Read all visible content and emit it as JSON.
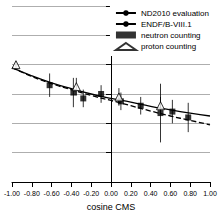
{
  "chart_data": {
    "type": "scatter",
    "x_label": "cosine CMS",
    "xlim": [
      -1,
      1
    ],
    "xticks": [
      {
        "value": -1,
        "label": "-1.00"
      },
      {
        "value": -0.8,
        "label": "-0.80"
      },
      {
        "value": -0.6,
        "label": "-0.60"
      },
      {
        "value": -0.4,
        "label": "-0.40"
      },
      {
        "value": -0.2,
        "label": "-0.20"
      },
      {
        "value": 0,
        "label": "0.00"
      },
      {
        "value": 0.2,
        "label": "0.20"
      },
      {
        "value": 0.4,
        "label": "0.40"
      },
      {
        "value": 0.6,
        "label": "0.60"
      },
      {
        "value": 0.8,
        "label": "0.80"
      },
      {
        "value": 1,
        "label": "1.00"
      }
    ],
    "ylim": [
      0,
      6
    ],
    "yticks": [
      0,
      1,
      2,
      3,
      4,
      5,
      6
    ],
    "grid": true,
    "tick_labels": "x",
    "legend": "top-right",
    "series": [
      {
        "name": "ND2010 evaluation",
        "type": "line",
        "line_style": "dashed",
        "marker": "none",
        "color": "#000000",
        "x": [
          -1,
          -0.8,
          -0.6,
          -0.4,
          -0.2,
          0,
          0.2,
          0.4,
          0.6,
          0.8,
          1
        ],
        "values": [
          3.9,
          3.6,
          3.35,
          3.15,
          2.95,
          2.78,
          2.6,
          2.42,
          2.25,
          2.1,
          1.95
        ]
      },
      {
        "name": "ENDF/B-VIII.1",
        "type": "line",
        "line_style": "solid",
        "marker": "none",
        "color": "#000000",
        "x": [
          -1,
          -0.8,
          -0.6,
          -0.4,
          -0.2,
          0,
          0.2,
          0.4,
          0.6,
          0.8,
          1
        ],
        "values": [
          3.9,
          3.62,
          3.38,
          3.18,
          3.0,
          2.85,
          2.72,
          2.58,
          2.46,
          2.35,
          2.25
        ]
      },
      {
        "name": "neutron counting",
        "type": "scatter",
        "marker": "square",
        "color": "#000000",
        "x": [
          -0.62,
          -0.38,
          -0.28,
          -0.1,
          0.1,
          0.3,
          0.5,
          0.62,
          0.78
        ],
        "values": [
          3.3,
          3.05,
          2.85,
          3.0,
          2.75,
          2.6,
          2.35,
          2.4,
          2.2
        ],
        "errors": [
          0.4,
          0.5,
          0.3,
          0.3,
          0.3,
          0.3,
          1.0,
          0.4,
          0.5
        ]
      },
      {
        "name": "proton counting",
        "type": "scatter",
        "marker": "triangle",
        "color": "#000000",
        "x": [
          -0.96,
          -0.35,
          0.08,
          0.5
        ],
        "values": [
          4.0,
          3.25,
          2.9,
          2.6
        ],
        "errors": [
          0.1,
          0.3,
          0.3,
          0.3
        ]
      }
    ]
  }
}
